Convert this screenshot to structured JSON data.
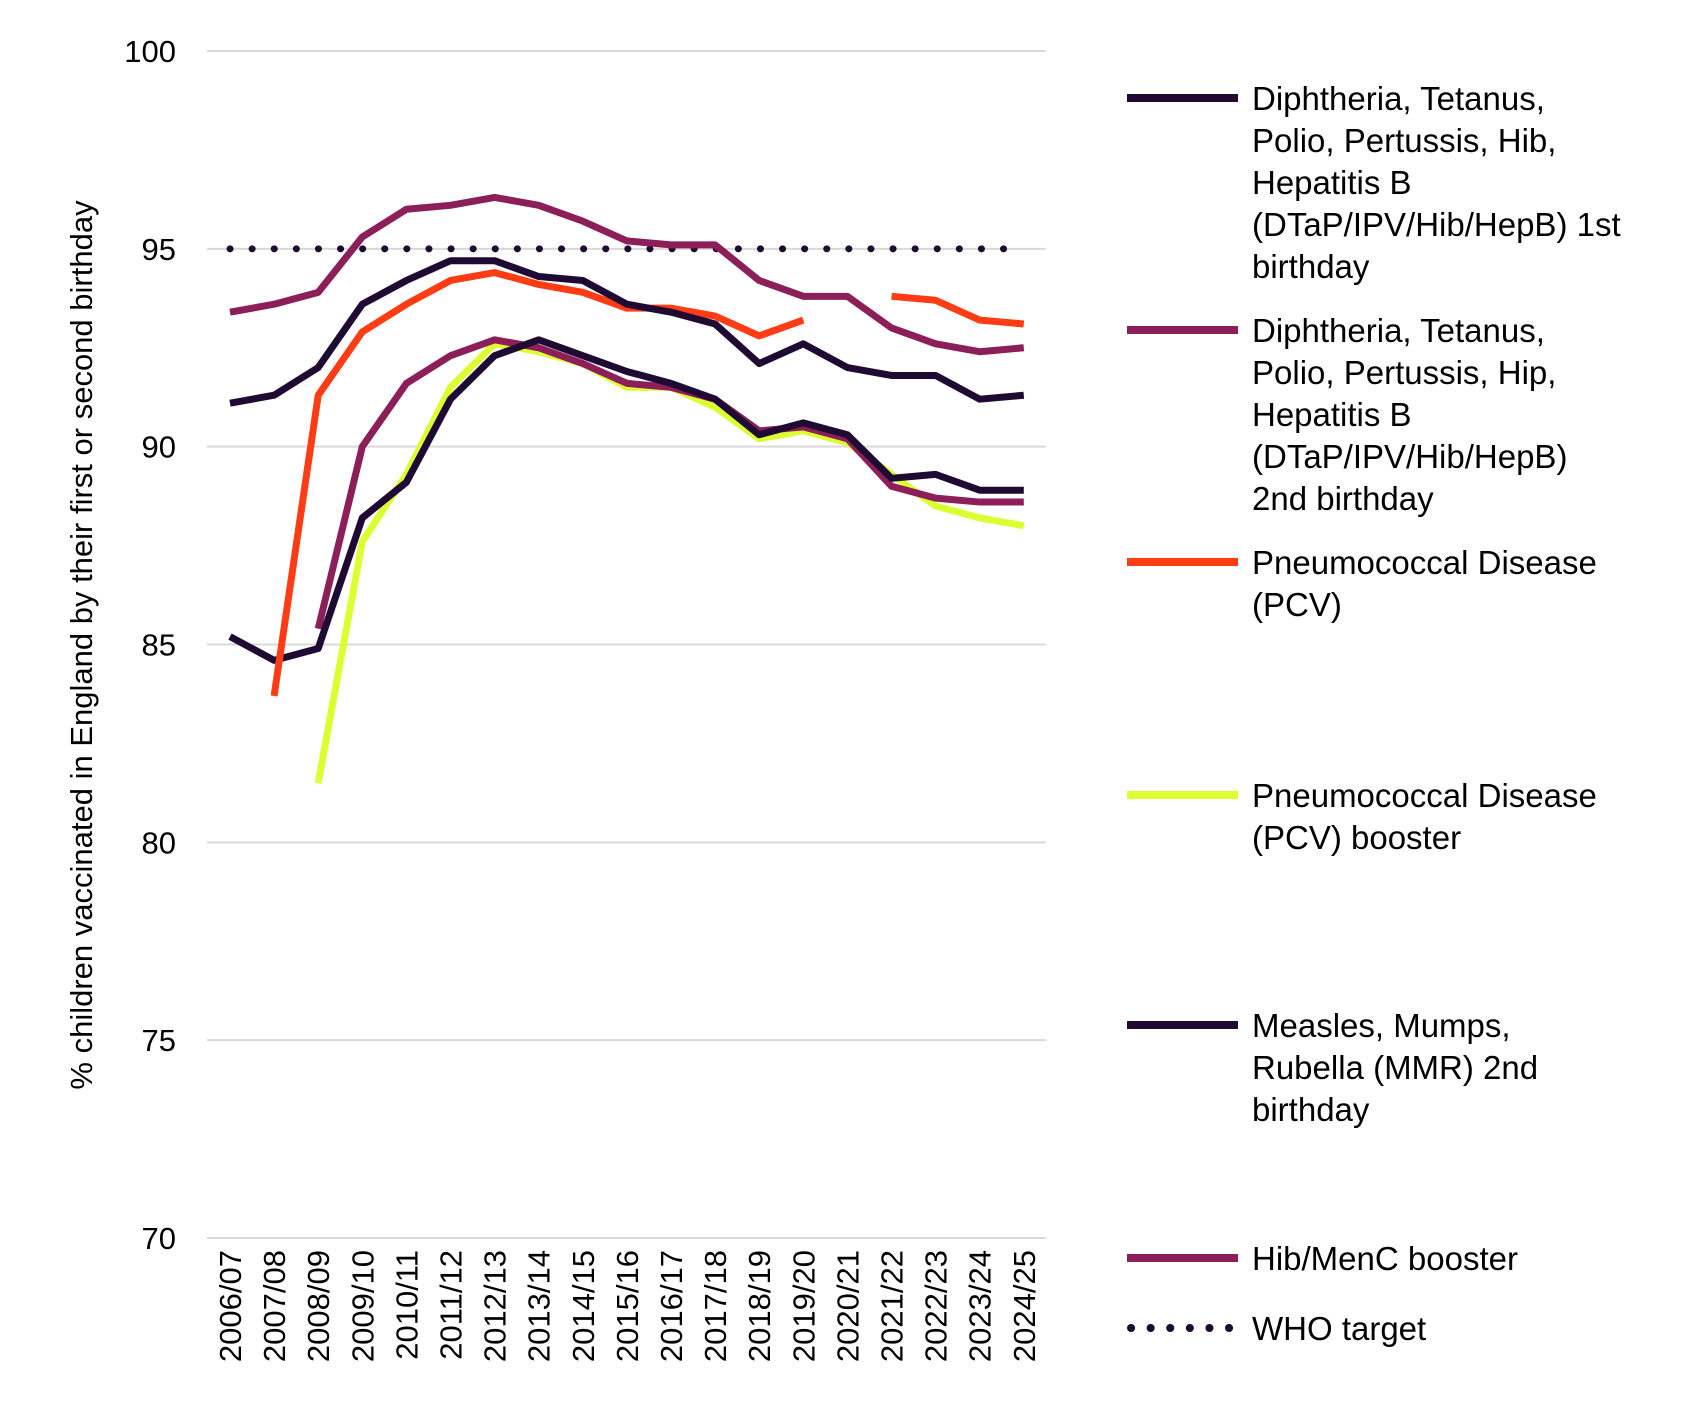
{
  "chart_data": {
    "type": "line",
    "title": "",
    "xlabel": "",
    "ylabel": "%  children vaccinated in England by their first or second birthday",
    "ylim": [
      70,
      100
    ],
    "yticks": [
      70,
      75,
      80,
      85,
      90,
      95,
      100
    ],
    "grid": true,
    "legend_position": "right",
    "categories": [
      "2006/07",
      "2007/08",
      "2008/09",
      "2009/10",
      "2010/11",
      "2011/12",
      "2012/13",
      "2013/14",
      "2014/15",
      "2015/16",
      "2016/17",
      "2017/18",
      "2018/19",
      "2019/20",
      "2020/21",
      "2021/22",
      "2022/23",
      "2023/24",
      "2024/25"
    ],
    "series": [
      {
        "name": "Diphtheria, Tetanus, Polio, Pertussis, Hib, Hepatitis B (DTaP/IPV/Hib/HepB) 1st birthday",
        "legend_lines": [
          "Diphtheria, Tetanus,",
          "Polio, Pertussis, Hib,",
          "Hepatitis B",
          "(DTaP/IPV/Hib/HepB) 1st",
          "birthday"
        ],
        "color": "#1e0a32",
        "style": "solid",
        "values": [
          91.1,
          91.3,
          92.0,
          93.6,
          94.2,
          94.7,
          94.7,
          94.3,
          94.2,
          93.6,
          93.4,
          93.1,
          92.1,
          92.6,
          92.0,
          91.8,
          91.8,
          91.2,
          91.3
        ]
      },
      {
        "name": "Diphtheria, Tetanus, Polio, Pertussis, Hip, Hepatitis B (DTaP/IPV/Hib/HepB) 2nd birthday",
        "legend_lines": [
          "Diphtheria, Tetanus,",
          "Polio, Pertussis, Hip,",
          "Hepatitis B",
          "(DTaP/IPV/Hib/HepB)",
          "2nd birthday"
        ],
        "color": "#8c1e5a",
        "style": "solid",
        "values": [
          93.4,
          93.6,
          93.9,
          95.3,
          96.0,
          96.1,
          96.3,
          96.1,
          95.7,
          95.2,
          95.1,
          95.1,
          94.2,
          93.8,
          93.8,
          93.0,
          92.6,
          92.4,
          92.5
        ]
      },
      {
        "name": "Pneumococcal Disease (PCV)",
        "legend_lines": [
          "Pneumococcal Disease",
          "(PCV)"
        ],
        "color": "#ff3c14",
        "style": "solid",
        "values": [
          null,
          83.7,
          91.3,
          92.9,
          93.6,
          94.2,
          94.4,
          94.1,
          93.9,
          93.5,
          93.5,
          93.3,
          92.8,
          93.2,
          null,
          93.8,
          93.7,
          93.2,
          93.1
        ]
      },
      {
        "name": "Pneumococcal Disease (PCV) booster",
        "legend_lines": [
          "Pneumococcal Disease",
          "(PCV) booster"
        ],
        "color": "#dcff32",
        "style": "solid",
        "values": [
          null,
          null,
          81.5,
          87.6,
          89.3,
          91.5,
          92.6,
          92.4,
          92.1,
          91.5,
          91.5,
          91.0,
          90.2,
          90.4,
          90.1,
          89.3,
          88.5,
          88.2,
          88.0
        ]
      },
      {
        "name": "Measles, Mumps, Rubella (MMR) 2nd birthday",
        "legend_lines": [
          "Measles, Mumps,",
          "Rubella (MMR) 2nd",
          "birthday"
        ],
        "color": "#1e0a32",
        "style": "solid",
        "values": [
          85.2,
          84.6,
          84.9,
          88.2,
          89.1,
          91.2,
          92.3,
          92.7,
          92.3,
          91.9,
          91.6,
          91.2,
          90.3,
          90.6,
          90.3,
          89.2,
          89.3,
          88.9,
          88.9
        ]
      },
      {
        "name": "Hib/MenC booster",
        "legend_lines": [
          "Hib/MenC booster"
        ],
        "color": "#8c1e5a",
        "style": "solid",
        "values": [
          null,
          null,
          85.4,
          90.0,
          91.6,
          92.3,
          92.7,
          92.5,
          92.1,
          91.6,
          91.5,
          91.2,
          90.4,
          90.5,
          90.2,
          89.0,
          88.7,
          88.6,
          88.6
        ]
      },
      {
        "name": "WHO target",
        "legend_lines": [
          "WHO target"
        ],
        "color": "#1e0a32",
        "style": "dotted",
        "values": [
          95,
          95,
          95,
          95,
          95,
          95,
          95,
          95,
          95,
          95,
          95,
          95,
          95,
          95,
          95,
          95,
          95,
          95,
          95
        ]
      }
    ]
  }
}
